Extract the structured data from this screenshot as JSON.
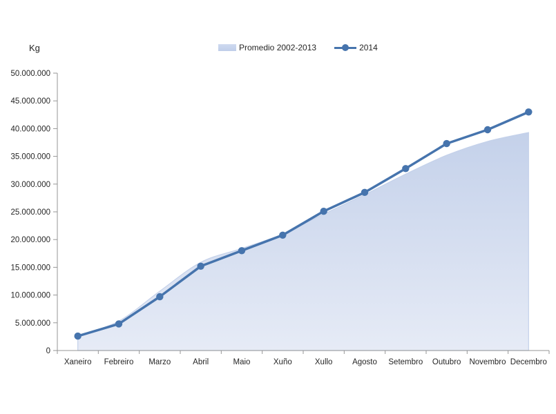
{
  "chart_data": {
    "type": "area+line",
    "title": "",
    "ylabel": "Kg",
    "xlabel": "",
    "legend_position": "top",
    "grid": false,
    "ylim": [
      0,
      50000000
    ],
    "ytick_step": 5000000,
    "ytick_labels": [
      "0",
      "5.000.000",
      "10.000.000",
      "15.000.000",
      "20.000.000",
      "25.000.000",
      "30.000.000",
      "35.000.000",
      "40.000.000",
      "45.000.000",
      "50.000.000"
    ],
    "categories": [
      "Xaneiro",
      "Febreiro",
      "Marzo",
      "Abril",
      "Maio",
      "Xuño",
      "Xullo",
      "Agosto",
      "Setembro",
      "Outubro",
      "Novembro",
      "Decembro"
    ],
    "series": [
      {
        "name": "Promedio 2002-2013",
        "type": "area",
        "smooth": true,
        "color_top": "#c4d1ea",
        "color_bottom": "#e6ebf6",
        "values": [
          2700000,
          5300000,
          10700000,
          15900000,
          18400000,
          21000000,
          24600000,
          28100000,
          31800000,
          35200000,
          37700000,
          39300000
        ]
      },
      {
        "name": "2014",
        "type": "line",
        "smooth": false,
        "color": "#4674ad",
        "marker": "circle",
        "values": [
          2600000,
          4800000,
          9700000,
          15200000,
          18000000,
          20800000,
          25100000,
          28500000,
          32800000,
          37300000,
          39800000,
          43000000
        ]
      }
    ],
    "axis_color": "#969696"
  }
}
